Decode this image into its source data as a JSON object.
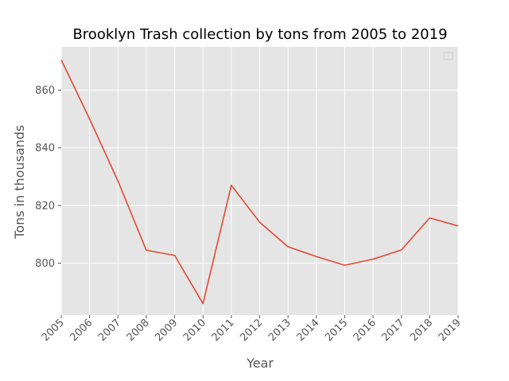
{
  "chart_data": {
    "type": "line",
    "title": "Brooklyn Trash collection by tons from 2005 to 2019",
    "xlabel": "Year",
    "ylabel": "Tons in thousands",
    "categories": [
      "2005",
      "2006",
      "2007",
      "2008",
      "2009",
      "2010",
      "2011",
      "2012",
      "2013",
      "2014",
      "2015",
      "2016",
      "2017",
      "2018",
      "2019"
    ],
    "series": [
      {
        "values": [
          870.5,
          850.0,
          828.5,
          804.5,
          802.7,
          786.0,
          827.0,
          814.2,
          805.7,
          802.3,
          799.3,
          801.4,
          804.6,
          815.7,
          812.9
        ]
      }
    ],
    "ylim": [
      782,
      875
    ],
    "yticks": [
      800,
      820,
      840,
      860
    ],
    "grid": true,
    "legend": "top-right",
    "colors": {
      "background": "#e5e5e5",
      "grid": "#ffffff",
      "line": "#e24a33"
    }
  }
}
